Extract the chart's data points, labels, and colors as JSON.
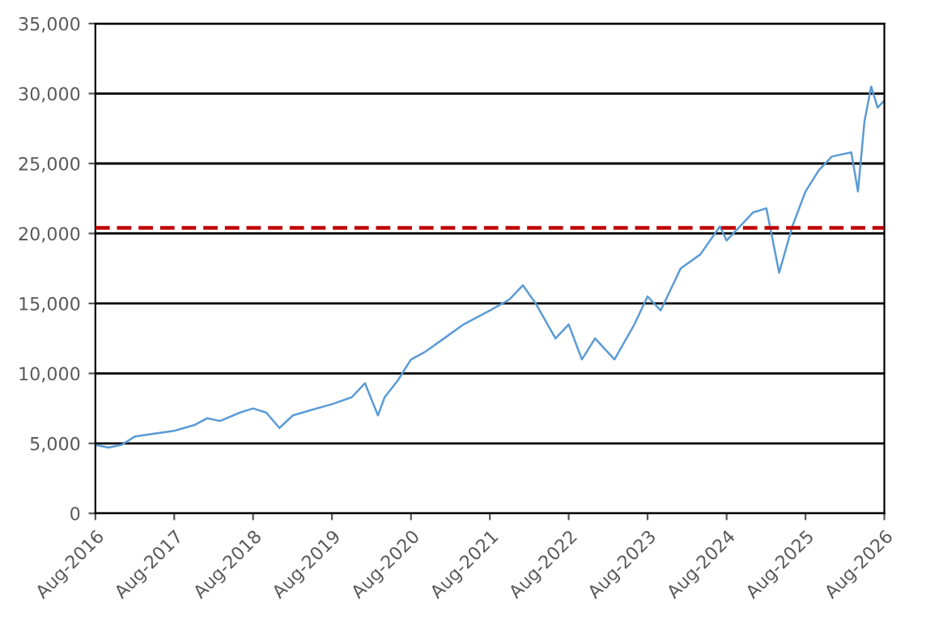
{
  "chart_data": {
    "type": "line",
    "x": [
      "2016-08",
      "2016-10",
      "2016-12",
      "2017-02",
      "2017-05",
      "2017-08",
      "2017-11",
      "2018-01",
      "2018-03",
      "2018-06",
      "2018-08",
      "2018-10",
      "2018-12",
      "2019-02",
      "2019-05",
      "2019-08",
      "2019-11",
      "2020-01",
      "2020-03",
      "2020-04",
      "2020-06",
      "2020-08",
      "2020-10",
      "2021-01",
      "2021-04",
      "2021-08",
      "2021-11",
      "2022-01",
      "2022-03",
      "2022-06",
      "2022-08",
      "2022-10",
      "2022-12",
      "2023-03",
      "2023-06",
      "2023-08",
      "2023-10",
      "2024-01",
      "2024-04",
      "2024-07",
      "2024-08",
      "2024-10",
      "2024-12",
      "2025-02",
      "2025-04",
      "2025-06",
      "2025-08",
      "2025-10",
      "2025-12",
      "2026-03",
      "2026-04",
      "2026-05",
      "2026-06",
      "2026-07",
      "2026-08"
    ],
    "series": [
      {
        "color": "#5b9bd5",
        "values": [
          4900,
          4700,
          4900,
          5500,
          5700,
          5900,
          6300,
          6800,
          6600,
          7200,
          7500,
          7200,
          6100,
          7000,
          7400,
          7800,
          8300,
          9300,
          7000,
          8300,
          9500,
          11000,
          11500,
          12500,
          13500,
          14500,
          15300,
          16300,
          15000,
          12500,
          13500,
          11000,
          12500,
          11000,
          13500,
          15500,
          14500,
          17500,
          18500,
          20500,
          19500,
          20500,
          21500,
          21800,
          17200,
          20500,
          23000,
          24500,
          25500,
          25800,
          23000,
          28000,
          30500,
          29000,
          29500
        ]
      }
    ],
    "xlim": [
      "2016-08",
      "2026-08"
    ],
    "xticks": [
      {
        "value": "2016-08",
        "label": "Aug-2016"
      },
      {
        "value": "2017-08",
        "label": "Aug-2017"
      },
      {
        "value": "2018-08",
        "label": "Aug-2018"
      },
      {
        "value": "2019-08",
        "label": "Aug-2019"
      },
      {
        "value": "2020-08",
        "label": "Aug-2020"
      },
      {
        "value": "2021-08",
        "label": "Aug-2021"
      },
      {
        "value": "2022-08",
        "label": "Aug-2022"
      },
      {
        "value": "2023-08",
        "label": "Aug-2023"
      },
      {
        "value": "2024-08",
        "label": "Aug-2024"
      },
      {
        "value": "2025-08",
        "label": "Aug-2025"
      },
      {
        "value": "2026-08",
        "label": "Aug-2026"
      }
    ],
    "ylim": [
      0,
      35000
    ],
    "yticks": [
      0,
      {
        "value": 5000,
        "label": "5,000"
      },
      {
        "value": 10000,
        "label": "10,000"
      },
      {
        "value": 15000,
        "label": "15,000"
      },
      {
        "value": 20000,
        "label": "20,000"
      },
      {
        "value": 25000,
        "label": "25,000"
      },
      {
        "value": 30000,
        "label": "30,000"
      },
      {
        "value": 35000,
        "label": "35,000"
      }
    ],
    "grid": "y",
    "ref_lines": [
      {
        "axis": "y",
        "value": 20400,
        "color": "#c00000",
        "line_style": "dashed"
      }
    ]
  }
}
